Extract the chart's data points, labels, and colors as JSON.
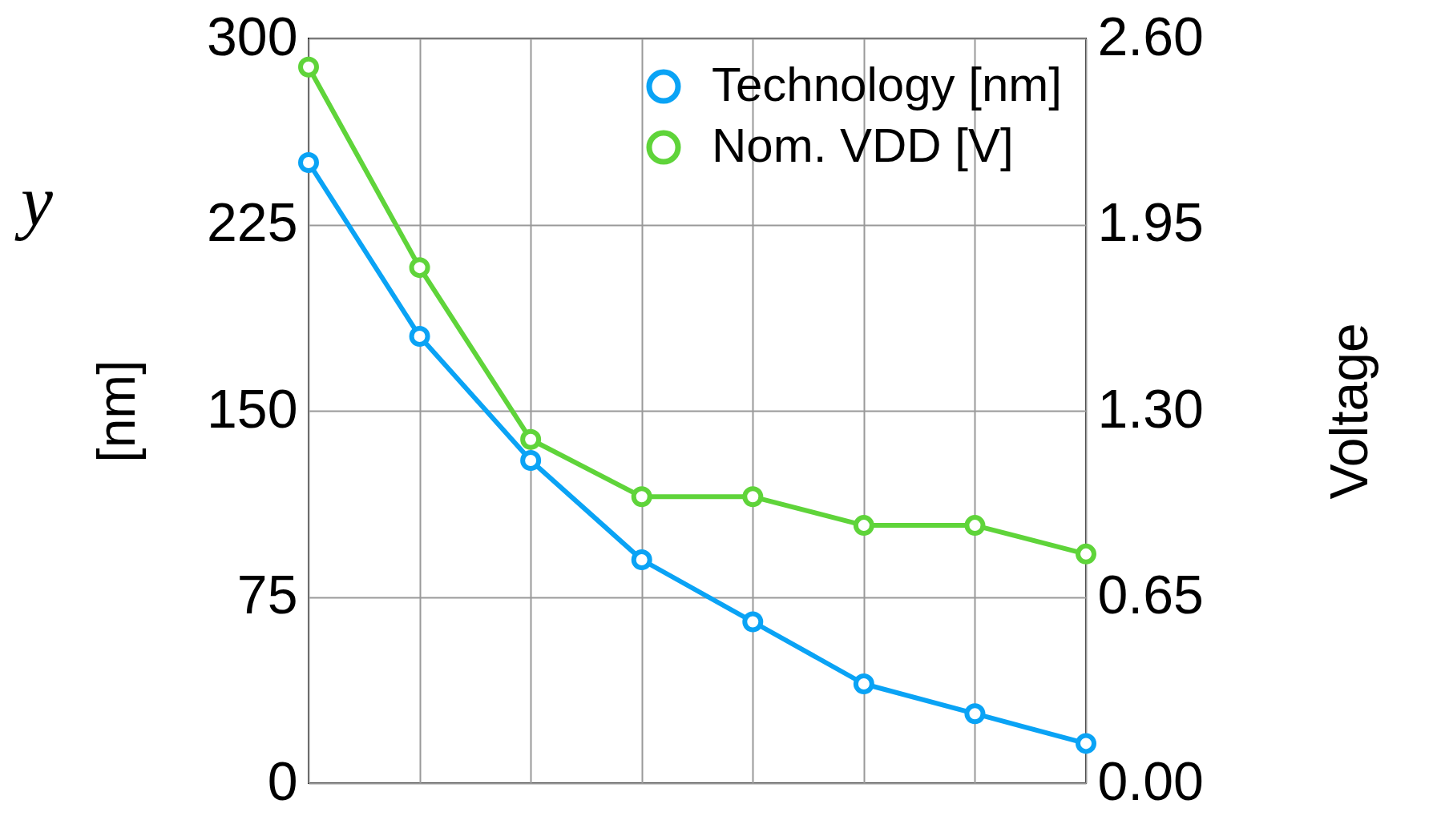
{
  "chart_data": {
    "type": "line",
    "ylabel": "[nm]",
    "y2label": "Voltage",
    "annotations": [
      "y"
    ],
    "categories": [
      null,
      null,
      null,
      null,
      null,
      null,
      null,
      null
    ],
    "series": [
      {
        "name": "Technology [nm]",
        "color": "#0aa3f5",
        "values": [
          250,
          180,
          130,
          90,
          65,
          40,
          28,
          16
        ]
      },
      {
        "name": "Nom. VDD [V]",
        "color": "#5fd43a",
        "axis": "y2",
        "values": [
          2.5,
          1.8,
          1.2,
          1.0,
          1.0,
          0.9,
          0.9,
          0.8
        ]
      }
    ],
    "ylim": [
      0,
      300
    ],
    "yticks": [
      0,
      75,
      150,
      225,
      300
    ],
    "y2lim": [
      0,
      2.6
    ],
    "y2ticks": [
      {
        "value": 0,
        "label": "0.00"
      },
      {
        "value": 0.65,
        "label": "0.65"
      },
      {
        "value": 1.3,
        "label": "1.30"
      },
      {
        "value": 1.95,
        "label": "1.95"
      },
      {
        "value": 2.6,
        "label": "2.60"
      }
    ],
    "grid": true,
    "legend": "top right",
    "marker": "circle",
    "line_style": "solid"
  }
}
